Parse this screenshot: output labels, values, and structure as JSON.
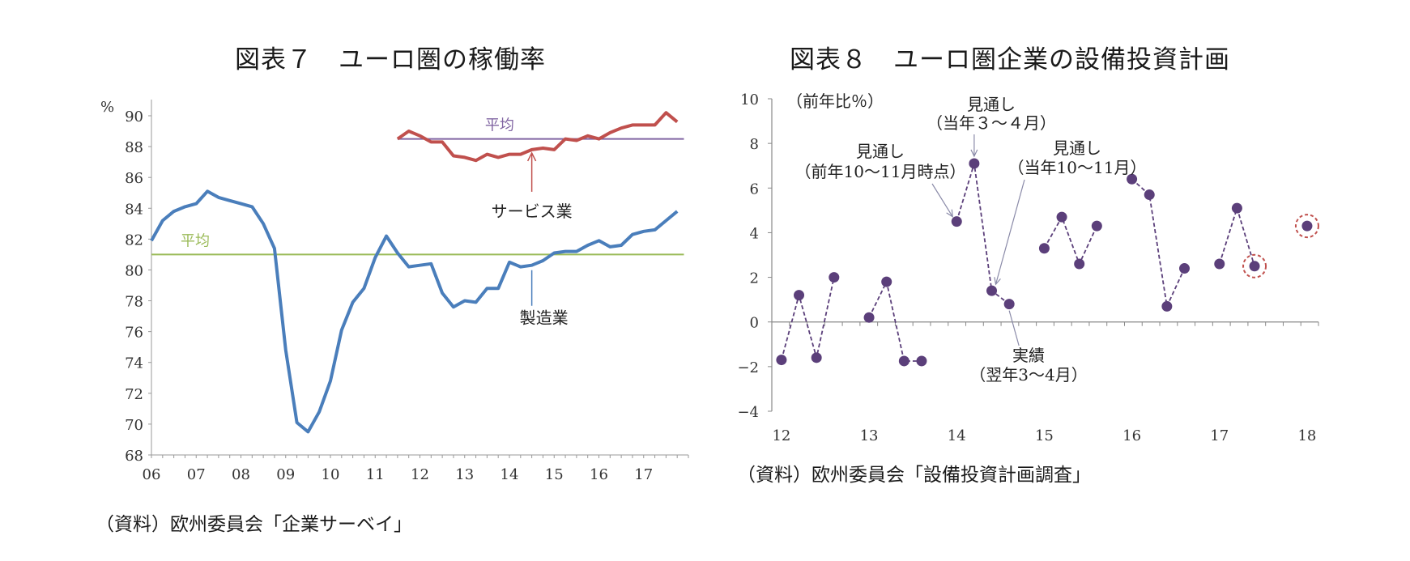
{
  "chart_data": [
    {
      "type": "line",
      "title": "図表７　ユーロ圏の稼働率",
      "ylabel": "%",
      "ylim": [
        68,
        90
      ],
      "yticks": [
        "68",
        "70",
        "72",
        "74",
        "76",
        "78",
        "80",
        "82",
        "84",
        "86",
        "88",
        "90"
      ],
      "xlim": [
        2006,
        2018
      ],
      "xtick_labels": [
        "06",
        "07",
        "08",
        "09",
        "10",
        "11",
        "12",
        "13",
        "14",
        "15",
        "16",
        "17"
      ],
      "series": [
        {
          "name": "製造業",
          "color": "#4a7ebb",
          "x": [
            2006.0,
            2006.25,
            2006.5,
            2006.75,
            2007.0,
            2007.25,
            2007.5,
            2007.75,
            2008.0,
            2008.25,
            2008.5,
            2008.75,
            2009.0,
            2009.25,
            2009.5,
            2009.75,
            2010.0,
            2010.25,
            2010.5,
            2010.75,
            2011.0,
            2011.25,
            2011.5,
            2011.75,
            2012.0,
            2012.25,
            2012.5,
            2012.75,
            2013.0,
            2013.25,
            2013.5,
            2013.75,
            2014.0,
            2014.25,
            2014.5,
            2014.75,
            2015.0,
            2015.25,
            2015.5,
            2015.75,
            2016.0,
            2016.25,
            2016.5,
            2016.75,
            2017.0,
            2017.25,
            2017.5,
            2017.75
          ],
          "values": [
            81.9,
            83.2,
            83.8,
            84.1,
            84.3,
            85.1,
            84.7,
            84.5,
            84.3,
            84.1,
            83.0,
            81.4,
            74.8,
            70.1,
            69.5,
            70.8,
            72.8,
            76.1,
            77.9,
            78.8,
            80.8,
            82.2,
            81.1,
            80.2,
            80.3,
            80.4,
            78.5,
            77.6,
            78.0,
            77.9,
            78.8,
            78.8,
            80.5,
            80.2,
            80.3,
            80.6,
            81.1,
            81.2,
            81.2,
            81.6,
            81.9,
            81.5,
            81.6,
            82.3,
            82.5,
            82.6,
            83.2,
            83.8
          ]
        },
        {
          "name": "サービス業",
          "color": "#c0504d",
          "x": [
            2011.5,
            2011.75,
            2012.0,
            2012.25,
            2012.5,
            2012.75,
            2013.0,
            2013.25,
            2013.5,
            2013.75,
            2014.0,
            2014.25,
            2014.5,
            2014.75,
            2015.0,
            2015.25,
            2015.5,
            2015.75,
            2016.0,
            2016.25,
            2016.5,
            2016.75,
            2017.0,
            2017.25,
            2017.5,
            2017.75
          ],
          "values": [
            88.5,
            89.0,
            88.7,
            88.3,
            88.3,
            87.4,
            87.3,
            87.1,
            87.5,
            87.3,
            87.5,
            87.5,
            87.8,
            87.9,
            87.8,
            88.5,
            88.4,
            88.7,
            88.5,
            88.9,
            89.2,
            89.4,
            89.4,
            89.4,
            90.2,
            89.6
          ]
        }
      ],
      "reference_lines": [
        {
          "label": "平均",
          "value": 81.0,
          "color": "#9bbb59",
          "from": 2006.0,
          "to": 2017.9
        },
        {
          "label": "平均",
          "value": 88.5,
          "color": "#8064a2",
          "from": 2011.5,
          "to": 2017.9
        }
      ],
      "annotations": [
        {
          "text": "サービス業",
          "target_x": 2014.5,
          "target_y": 87.8
        },
        {
          "text": "製造業",
          "target_x": 2014.5,
          "target_y": 80.3
        }
      ],
      "source": "（資料）欧州委員会「企業サーベイ」"
    },
    {
      "type": "scatter",
      "title": "図表８　ユーロ圏企業の設備投資計画",
      "ylabel": "（前年比％）",
      "ylim": [
        -4,
        10
      ],
      "yticks": [
        "−4",
        "−2",
        "0",
        "2",
        "4",
        "6",
        "8",
        "10"
      ],
      "xlim": [
        2012,
        2018
      ],
      "xtick_labels": [
        "12",
        "13",
        "14",
        "15",
        "16",
        "17",
        "18"
      ],
      "point_color": "#5b3f7a",
      "groups": [
        {
          "x": [
            2012.0,
            2012.2,
            2012.4,
            2012.6
          ],
          "values": [
            -1.7,
            1.2,
            -1.6,
            2.0
          ]
        },
        {
          "x": [
            2013.0,
            2013.2,
            2013.4,
            2013.6
          ],
          "values": [
            0.2,
            1.8,
            -1.75,
            -1.75
          ]
        },
        {
          "x": [
            2014.0,
            2014.2,
            2014.4,
            2014.6
          ],
          "values": [
            4.5,
            7.1,
            1.4,
            0.8
          ]
        },
        {
          "x": [
            2015.0,
            2015.2,
            2015.4,
            2015.6
          ],
          "values": [
            3.3,
            4.7,
            2.6,
            4.3
          ]
        },
        {
          "x": [
            2016.0,
            2016.2,
            2016.4,
            2016.6
          ],
          "values": [
            6.4,
            5.7,
            0.7,
            2.4
          ]
        },
        {
          "x": [
            2017.0,
            2017.2,
            2017.4
          ],
          "values": [
            2.6,
            5.1,
            2.5
          ]
        },
        {
          "x": [
            2018.0
          ],
          "values": [
            4.3
          ]
        }
      ],
      "highlighted": [
        {
          "x": 2017.4,
          "y": 2.5
        },
        {
          "x": 2018.0,
          "y": 4.3
        }
      ],
      "annotations": [
        {
          "lines": [
            "見通し",
            "（前年10〜11月時点）"
          ],
          "target_x": 2014.0,
          "target_y": 4.5
        },
        {
          "lines": [
            "見通し",
            "（当年３〜４月）"
          ],
          "target_x": 2014.2,
          "target_y": 7.1
        },
        {
          "lines": [
            "見通し",
            "（当年10〜11月）"
          ],
          "target_x": 2014.4,
          "target_y": 1.4
        },
        {
          "lines": [
            "実績",
            "（翌年3〜4月）"
          ],
          "target_x": 2014.6,
          "target_y": 0.8
        }
      ],
      "source": "（資料）欧州委員会「設備投資計画調査」"
    }
  ]
}
